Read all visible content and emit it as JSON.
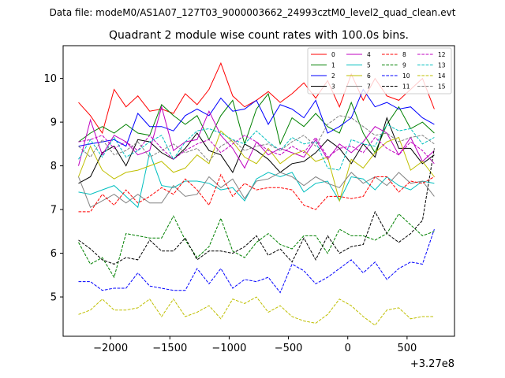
{
  "chart_data": {
    "type": "line",
    "suptitle": "Data file: modeM0/AS1A07_127T03_9000003662_24993cztM0_level2_quad_clean.evt",
    "title": "Quadrant 2 module wise count rates with 100.0s bins.",
    "xlabel": "",
    "ylabel": "",
    "x_offset_label": "+3.27e8",
    "xlim": [
      -2400,
      900
    ],
    "ylim": [
      4.1,
      10.75
    ],
    "xticks": [
      -2000,
      -1500,
      -1000,
      -500,
      0,
      500
    ],
    "xtick_labels": [
      "−2000",
      "−1500",
      "−1000",
      "−500",
      "0",
      "500"
    ],
    "yticks": [
      5,
      6,
      7,
      8,
      9,
      10
    ],
    "ytick_labels": [
      "5",
      "6",
      "7",
      "8",
      "9",
      "10"
    ],
    "legend_position": "top-right",
    "x": [
      -2270,
      -2170,
      -2070,
      -1970,
      -1870,
      -1770,
      -1670,
      -1570,
      -1470,
      -1370,
      -1270,
      -1170,
      -1070,
      -970,
      -870,
      -770,
      -670,
      -570,
      -470,
      -370,
      -270,
      -170,
      -70,
      30,
      130,
      230,
      330,
      430,
      530,
      630,
      730
    ],
    "series": [
      {
        "name": "0",
        "color": "#ff0000",
        "dash": "solid",
        "values": [
          9.45,
          9.15,
          8.75,
          9.75,
          9.35,
          9.6,
          9.25,
          9.3,
          9.2,
          9.65,
          9.4,
          9.75,
          10.35,
          9.6,
          9.35,
          9.5,
          9.7,
          9.45,
          9.65,
          9.9,
          9.55,
          9.95,
          9.35,
          10.1,
          9.5,
          10.0,
          9.6,
          9.5,
          9.75,
          10.0,
          9.3
        ]
      },
      {
        "name": "1",
        "color": "#008000",
        "dash": "solid",
        "values": [
          8.55,
          8.75,
          8.9,
          8.75,
          8.95,
          8.75,
          8.7,
          9.4,
          9.15,
          8.95,
          9.15,
          8.6,
          9.15,
          9.5,
          8.5,
          9.3,
          9.65,
          8.5,
          9.1,
          8.9,
          9.2,
          8.9,
          8.75,
          9.45,
          8.75,
          8.3,
          8.95,
          9.35,
          8.85,
          9.0,
          8.75
        ]
      },
      {
        "name": "2",
        "color": "#0000ff",
        "dash": "solid",
        "values": [
          8.45,
          8.5,
          8.55,
          8.6,
          8.45,
          9.2,
          8.9,
          8.9,
          8.8,
          9.15,
          9.3,
          9.15,
          9.55,
          9.25,
          9.3,
          9.5,
          8.95,
          9.4,
          9.3,
          9.1,
          9.5,
          8.75,
          8.9,
          9.1,
          9.75,
          9.35,
          9.45,
          9.3,
          9.35,
          9.1,
          8.95
        ]
      },
      {
        "name": "3",
        "color": "#000000",
        "dash": "solid",
        "values": [
          7.6,
          7.75,
          8.3,
          8.45,
          8.0,
          8.6,
          8.55,
          8.3,
          8.15,
          8.4,
          8.75,
          8.35,
          8.25,
          7.85,
          8.5,
          8.35,
          8.15,
          7.85,
          8.05,
          8.1,
          8.3,
          8.6,
          8.4,
          8.05,
          8.5,
          8.2,
          9.1,
          8.4,
          8.4,
          8.05,
          8.25
        ]
      },
      {
        "name": "4",
        "color": "#bf00bf",
        "dash": "solid",
        "values": [
          8.0,
          9.05,
          8.25,
          8.7,
          8.55,
          8.25,
          8.35,
          9.35,
          8.35,
          8.55,
          8.6,
          9.25,
          8.7,
          8.4,
          7.95,
          8.55,
          8.25,
          8.4,
          8.3,
          8.2,
          8.6,
          8.15,
          8.5,
          8.3,
          8.55,
          8.9,
          8.75,
          8.25,
          8.65,
          8.1,
          8.35
        ]
      },
      {
        "name": "5",
        "color": "#00bfbf",
        "dash": "solid",
        "values": [
          7.4,
          7.35,
          7.45,
          7.55,
          7.3,
          7.05,
          8.3,
          7.55,
          7.5,
          7.65,
          7.65,
          7.6,
          7.45,
          7.5,
          7.2,
          7.7,
          7.85,
          7.75,
          7.85,
          7.4,
          7.6,
          7.65,
          7.2,
          7.75,
          7.7,
          7.45,
          7.75,
          7.55,
          7.45,
          7.65,
          7.6
        ]
      },
      {
        "name": "6",
        "color": "#bfbf00",
        "dash": "solid",
        "values": [
          7.75,
          8.45,
          7.9,
          7.7,
          7.85,
          7.9,
          8.0,
          8.1,
          7.85,
          7.95,
          8.25,
          8.05,
          8.8,
          8.55,
          8.2,
          8.05,
          8.4,
          8.05,
          8.25,
          8.35,
          8.1,
          8.2,
          7.2,
          8.15,
          7.95,
          8.3,
          8.55,
          8.65,
          7.9,
          8.1,
          7.75
        ]
      },
      {
        "name": "7",
        "color": "#808080",
        "dash": "solid",
        "values": [
          7.75,
          7.05,
          7.2,
          7.35,
          7.15,
          7.35,
          7.15,
          7.15,
          7.55,
          7.3,
          7.35,
          7.75,
          7.5,
          7.7,
          7.25,
          7.65,
          7.7,
          7.85,
          7.75,
          7.55,
          7.75,
          7.6,
          7.5,
          7.85,
          7.6,
          7.75,
          7.55,
          7.85,
          7.6,
          7.65,
          7.3
        ]
      },
      {
        "name": "8",
        "color": "#ff0000",
        "dash": "dashed",
        "values": [
          6.95,
          6.95,
          7.35,
          7.1,
          7.45,
          7.15,
          7.3,
          7.5,
          7.35,
          7.7,
          7.45,
          7.1,
          7.8,
          7.3,
          7.6,
          7.45,
          7.5,
          7.5,
          7.45,
          7.1,
          7.0,
          7.3,
          7.3,
          7.25,
          7.3,
          7.75,
          7.75,
          7.4,
          7.65,
          7.6,
          7.75
        ]
      },
      {
        "name": "9",
        "color": "#008000",
        "dash": "dashed",
        "values": [
          6.25,
          5.75,
          5.9,
          5.45,
          6.45,
          6.4,
          6.35,
          6.35,
          6.85,
          6.3,
          5.9,
          6.15,
          6.8,
          6.05,
          5.9,
          6.25,
          6.45,
          6.2,
          6.1,
          6.4,
          6.4,
          6.0,
          6.55,
          6.4,
          6.4,
          6.3,
          6.45,
          6.9,
          6.65,
          6.4,
          6.5
        ]
      },
      {
        "name": "10",
        "color": "#0000ff",
        "dash": "dashed",
        "values": [
          5.35,
          5.35,
          5.15,
          5.2,
          5.2,
          5.55,
          5.25,
          5.2,
          5.15,
          5.15,
          5.65,
          5.3,
          5.65,
          5.2,
          5.4,
          5.35,
          5.45,
          5.1,
          5.75,
          5.6,
          5.3,
          5.45,
          5.65,
          5.85,
          5.55,
          5.8,
          5.4,
          5.65,
          5.8,
          5.75,
          6.55
        ]
      },
      {
        "name": "11",
        "color": "#000000",
        "dash": "dashed",
        "values": [
          6.3,
          6.1,
          5.85,
          5.75,
          5.9,
          5.85,
          6.3,
          6.05,
          6.05,
          6.35,
          5.85,
          6.05,
          6.05,
          6.0,
          6.15,
          6.4,
          5.95,
          6.1,
          5.8,
          6.35,
          5.85,
          6.4,
          6.0,
          6.15,
          6.2,
          6.95,
          6.45,
          6.25,
          6.45,
          6.75,
          8.4
        ]
      },
      {
        "name": "12",
        "color": "#bf00bf",
        "dash": "dashed",
        "values": [
          8.55,
          8.6,
          8.7,
          8.4,
          8.55,
          8.35,
          8.7,
          8.4,
          8.15,
          8.35,
          8.5,
          8.6,
          8.3,
          8.5,
          8.7,
          8.55,
          8.35,
          8.25,
          8.45,
          8.3,
          8.65,
          8.2,
          8.4,
          8.45,
          8.3,
          8.65,
          8.4,
          8.25,
          8.55,
          8.35,
          8.05
        ]
      },
      {
        "name": "13",
        "color": "#00bfbf",
        "dash": "dashed",
        "values": [
          8.15,
          8.6,
          8.2,
          8.65,
          8.2,
          8.35,
          8.55,
          8.7,
          8.15,
          8.55,
          8.8,
          8.85,
          8.75,
          8.6,
          8.5,
          8.8,
          8.55,
          8.35,
          8.65,
          8.5,
          8.55,
          7.95,
          7.9,
          8.6,
          8.5,
          8.45,
          8.95,
          8.8,
          8.85,
          8.5,
          8.65
        ]
      },
      {
        "name": "14",
        "color": "#bfbf00",
        "dash": "dashed",
        "values": [
          4.6,
          4.7,
          4.95,
          4.7,
          4.7,
          4.75,
          4.95,
          4.55,
          4.95,
          4.55,
          4.65,
          4.8,
          4.5,
          4.95,
          4.85,
          5.0,
          4.65,
          4.8,
          4.55,
          4.45,
          4.4,
          4.6,
          4.95,
          4.8,
          4.55,
          4.35,
          4.7,
          4.75,
          4.5,
          4.55,
          4.55
        ]
      },
      {
        "name": "15",
        "color": "#808080",
        "dash": "dashed",
        "values": [
          8.45,
          8.2,
          8.6,
          8.25,
          8.35,
          8.55,
          8.2,
          8.35,
          8.5,
          8.3,
          8.4,
          8.1,
          8.45,
          8.6,
          8.35,
          8.45,
          8.5,
          8.35,
          8.55,
          8.7,
          8.45,
          8.95,
          9.15,
          9.1,
          8.9,
          8.7,
          8.75,
          8.55,
          8.65,
          8.7,
          8.5
        ]
      }
    ]
  }
}
